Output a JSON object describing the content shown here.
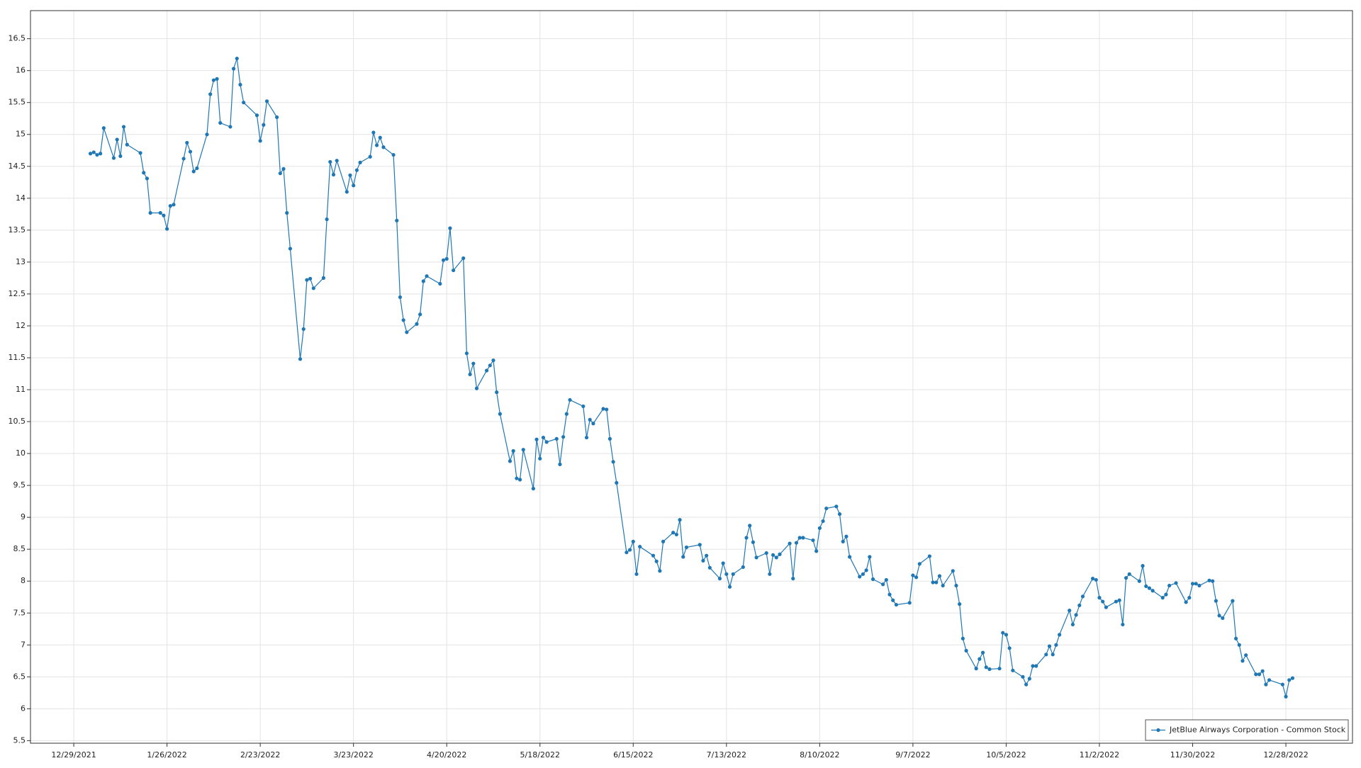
{
  "chart_data": {
    "type": "line",
    "x": [
      "1/3/2022",
      "1/4/2022",
      "1/5/2022",
      "1/6/2022",
      "1/7/2022",
      "1/10/2022",
      "1/11/2022",
      "1/12/2022",
      "1/13/2022",
      "1/14/2022",
      "1/18/2022",
      "1/19/2022",
      "1/20/2022",
      "1/21/2022",
      "1/24/2022",
      "1/25/2022",
      "1/26/2022",
      "1/27/2022",
      "1/28/2022",
      "1/31/2022",
      "2/1/2022",
      "2/2/2022",
      "2/3/2022",
      "2/4/2022",
      "2/7/2022",
      "2/8/2022",
      "2/9/2022",
      "2/10/2022",
      "2/11/2022",
      "2/14/2022",
      "2/15/2022",
      "2/16/2022",
      "2/17/2022",
      "2/18/2022",
      "2/22/2022",
      "2/23/2022",
      "2/24/2022",
      "2/25/2022",
      "2/28/2022",
      "3/1/2022",
      "3/2/2022",
      "3/3/2022",
      "3/4/2022",
      "3/7/2022",
      "3/8/2022",
      "3/9/2022",
      "3/10/2022",
      "3/11/2022",
      "3/14/2022",
      "3/15/2022",
      "3/16/2022",
      "3/17/2022",
      "3/18/2022",
      "3/21/2022",
      "3/22/2022",
      "3/23/2022",
      "3/24/2022",
      "3/25/2022",
      "3/28/2022",
      "3/29/2022",
      "3/30/2022",
      "3/31/2022",
      "4/1/2022",
      "4/4/2022",
      "4/5/2022",
      "4/6/2022",
      "4/7/2022",
      "4/8/2022",
      "4/11/2022",
      "4/12/2022",
      "4/13/2022",
      "4/14/2022",
      "4/18/2022",
      "4/19/2022",
      "4/20/2022",
      "4/21/2022",
      "4/22/2022",
      "4/25/2022",
      "4/26/2022",
      "4/27/2022",
      "4/28/2022",
      "4/29/2022",
      "5/2/2022",
      "5/3/2022",
      "5/4/2022",
      "5/5/2022",
      "5/6/2022",
      "5/9/2022",
      "5/10/2022",
      "5/11/2022",
      "5/12/2022",
      "5/13/2022",
      "5/16/2022",
      "5/17/2022",
      "5/18/2022",
      "5/19/2022",
      "5/20/2022",
      "5/23/2022",
      "5/24/2022",
      "5/25/2022",
      "5/26/2022",
      "5/27/2022",
      "5/31/2022",
      "6/1/2022",
      "6/2/2022",
      "6/3/2022",
      "6/6/2022",
      "6/7/2022",
      "6/8/2022",
      "6/9/2022",
      "6/10/2022",
      "6/13/2022",
      "6/14/2022",
      "6/15/2022",
      "6/16/2022",
      "6/17/2022",
      "6/21/2022",
      "6/22/2022",
      "6/23/2022",
      "6/24/2022",
      "6/27/2022",
      "6/28/2022",
      "6/29/2022",
      "6/30/2022",
      "7/1/2022",
      "7/5/2022",
      "7/6/2022",
      "7/7/2022",
      "7/8/2022",
      "7/11/2022",
      "7/12/2022",
      "7/13/2022",
      "7/14/2022",
      "7/15/2022",
      "7/18/2022",
      "7/19/2022",
      "7/20/2022",
      "7/21/2022",
      "7/22/2022",
      "7/25/2022",
      "7/26/2022",
      "7/27/2022",
      "7/28/2022",
      "7/29/2022",
      "8/1/2022",
      "8/2/2022",
      "8/3/2022",
      "8/4/2022",
      "8/5/2022",
      "8/8/2022",
      "8/9/2022",
      "8/10/2022",
      "8/11/2022",
      "8/12/2022",
      "8/15/2022",
      "8/16/2022",
      "8/17/2022",
      "8/18/2022",
      "8/19/2022",
      "8/22/2022",
      "8/23/2022",
      "8/24/2022",
      "8/25/2022",
      "8/26/2022",
      "8/29/2022",
      "8/30/2022",
      "8/31/2022",
      "9/1/2022",
      "9/2/2022",
      "9/6/2022",
      "9/7/2022",
      "9/8/2022",
      "9/9/2022",
      "9/12/2022",
      "9/13/2022",
      "9/14/2022",
      "9/15/2022",
      "9/16/2022",
      "9/19/2022",
      "9/20/2022",
      "9/21/2022",
      "9/22/2022",
      "9/23/2022",
      "9/26/2022",
      "9/27/2022",
      "9/28/2022",
      "9/29/2022",
      "9/30/2022",
      "10/3/2022",
      "10/4/2022",
      "10/5/2022",
      "10/6/2022",
      "10/7/2022",
      "10/10/2022",
      "10/11/2022",
      "10/12/2022",
      "10/13/2022",
      "10/14/2022",
      "10/17/2022",
      "10/18/2022",
      "10/19/2022",
      "10/20/2022",
      "10/21/2022",
      "10/24/2022",
      "10/25/2022",
      "10/26/2022",
      "10/27/2022",
      "10/28/2022",
      "10/31/2022",
      "11/1/2022",
      "11/2/2022",
      "11/3/2022",
      "11/4/2022",
      "11/7/2022",
      "11/8/2022",
      "11/9/2022",
      "11/10/2022",
      "11/11/2022",
      "11/14/2022",
      "11/15/2022",
      "11/16/2022",
      "11/17/2022",
      "11/18/2022",
      "11/21/2022",
      "11/22/2022",
      "11/23/2022",
      "11/25/2022",
      "11/28/2022",
      "11/29/2022",
      "11/30/2022",
      "12/1/2022",
      "12/2/2022",
      "12/5/2022",
      "12/6/2022",
      "12/7/2022",
      "12/8/2022",
      "12/9/2022",
      "12/12/2022",
      "12/13/2022",
      "12/14/2022",
      "12/15/2022",
      "12/16/2022",
      "12/19/2022",
      "12/20/2022",
      "12/21/2022",
      "12/22/2022",
      "12/23/2022",
      "12/27/2022",
      "12/28/2022",
      "12/29/2022",
      "12/30/2022"
    ],
    "series": [
      {
        "name": "JetBlue Airways Corporation - Common Stock",
        "color": "#1f77b4",
        "values": [
          14.7,
          14.72,
          14.68,
          14.7,
          15.1,
          14.63,
          14.92,
          14.66,
          15.12,
          14.84,
          14.71,
          14.4,
          14.31,
          13.77,
          13.77,
          13.73,
          13.52,
          13.88,
          13.9,
          14.62,
          14.87,
          14.73,
          14.42,
          14.47,
          15.0,
          15.63,
          15.85,
          15.87,
          15.18,
          15.12,
          16.03,
          16.19,
          15.78,
          15.5,
          15.3,
          14.9,
          15.15,
          15.52,
          15.27,
          14.39,
          14.46,
          13.77,
          13.21,
          11.48,
          11.95,
          12.72,
          12.74,
          12.59,
          12.75,
          13.67,
          14.57,
          14.37,
          14.59,
          14.1,
          14.36,
          14.2,
          14.44,
          14.56,
          14.65,
          15.03,
          14.83,
          14.95,
          14.8,
          14.68,
          13.65,
          12.45,
          12.09,
          11.9,
          12.03,
          12.18,
          12.7,
          12.78,
          12.66,
          13.03,
          13.05,
          13.53,
          12.87,
          13.06,
          11.57,
          11.24,
          11.41,
          11.02,
          11.3,
          11.38,
          11.46,
          10.96,
          10.62,
          9.88,
          10.04,
          9.61,
          9.59,
          10.06,
          9.45,
          10.22,
          9.92,
          10.25,
          10.18,
          10.23,
          9.83,
          10.26,
          10.62,
          10.84,
          10.74,
          10.25,
          10.53,
          10.47,
          10.7,
          10.69,
          10.23,
          9.87,
          9.54,
          8.45,
          8.49,
          8.62,
          8.11,
          8.54,
          8.4,
          8.31,
          8.16,
          8.62,
          8.76,
          8.73,
          8.96,
          8.38,
          8.53,
          8.57,
          8.32,
          8.4,
          8.21,
          8.04,
          8.28,
          8.11,
          7.91,
          8.11,
          8.22,
          8.68,
          8.87,
          8.61,
          8.37,
          8.44,
          8.11,
          8.41,
          8.37,
          8.42,
          8.59,
          8.04,
          8.6,
          8.68,
          8.68,
          8.64,
          8.47,
          8.83,
          8.94,
          9.14,
          9.17,
          9.05,
          8.62,
          8.7,
          8.38,
          8.07,
          8.11,
          8.17,
          8.38,
          8.03,
          7.95,
          8.02,
          7.79,
          7.7,
          7.63,
          7.66,
          8.09,
          8.06,
          8.27,
          8.39,
          7.98,
          7.98,
          8.08,
          7.93,
          8.16,
          7.93,
          7.64,
          7.1,
          6.91,
          6.63,
          6.78,
          6.88,
          6.65,
          6.62,
          6.63,
          7.19,
          7.16,
          6.95,
          6.6,
          6.5,
          6.38,
          6.47,
          6.67,
          6.67,
          6.85,
          6.98,
          6.85,
          7.0,
          7.16,
          7.54,
          7.32,
          7.47,
          7.62,
          7.76,
          8.04,
          8.02,
          7.74,
          7.68,
          7.59,
          7.68,
          7.7,
          7.32,
          8.05,
          8.11,
          8.0,
          8.24,
          7.92,
          7.89,
          7.85,
          7.74,
          7.79,
          7.93,
          7.97,
          7.67,
          7.74,
          7.96,
          7.96,
          7.93,
          8.01,
          8.0,
          7.69,
          7.46,
          7.42,
          7.69,
          7.1,
          7.0,
          6.75,
          6.84,
          6.54,
          6.54,
          6.59,
          6.38,
          6.45,
          6.38,
          6.19,
          6.45,
          6.48
        ]
      }
    ],
    "xlim": [
      "12/16/2021",
      "1/17/2023"
    ],
    "xticks": [
      "12/29/2021",
      "1/26/2022",
      "2/23/2022",
      "3/23/2022",
      "4/20/2022",
      "5/18/2022",
      "6/15/2022",
      "7/13/2022",
      "8/10/2022",
      "9/7/2022",
      "10/5/2022",
      "11/2/2022",
      "11/30/2022",
      "12/28/2022"
    ],
    "ylim": [
      5.46,
      16.94
    ],
    "yticks": [
      5.5,
      6,
      6.5,
      7,
      7.5,
      8,
      8.5,
      9,
      9.5,
      10,
      10.5,
      11,
      11.5,
      12,
      12.5,
      13,
      13.5,
      14,
      14.5,
      15,
      15.5,
      16,
      16.5
    ],
    "grid": true,
    "legend": "lower right"
  }
}
